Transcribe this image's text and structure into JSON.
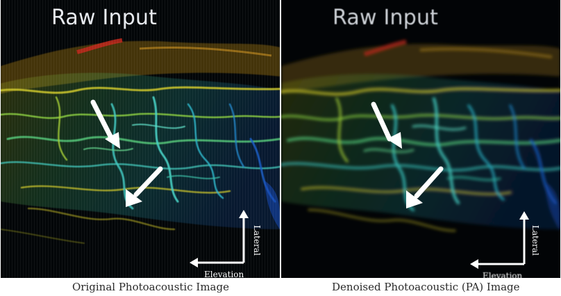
{
  "panels": [
    {
      "overlay_title": "Raw Input",
      "axis_lateral": "Lateral",
      "axis_elevation": "Elevation",
      "caption": "Original Photoacoustic Image"
    },
    {
      "overlay_title": "Raw Input",
      "axis_lateral": "Lateral",
      "axis_elevation": "Elevation",
      "caption": "Denoised Photoacoustic (PA) Image"
    }
  ],
  "colors": {
    "background": "#02050a",
    "arrow": "#ffffff",
    "vessel_yellow": "#c8c22a",
    "vessel_green": "#4fc86e",
    "vessel_cyan": "#3ec0c0",
    "vessel_blue": "#1a64c8",
    "vessel_red": "#c0281c"
  },
  "icons": [
    "white-arrow-icon",
    "axis-arrows-icon"
  ]
}
